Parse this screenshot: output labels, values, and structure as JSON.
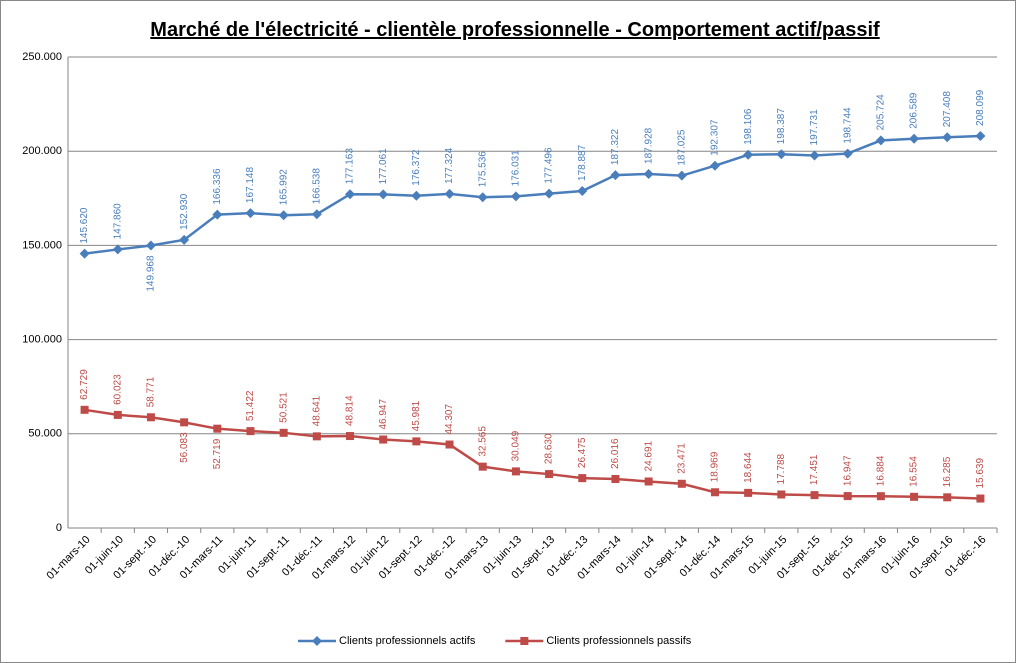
{
  "chart_data": {
    "type": "line",
    "title": "Marché de l'électricité - clientèle professionnelle - Comportement actif/passif",
    "categories": [
      "01-mars-10",
      "01-juin-10",
      "01-sept.-10",
      "01-déc.-10",
      "01-mars-11",
      "01-juin-11",
      "01-sept.-11",
      "01-déc.-11",
      "01-mars-12",
      "01-juin-12",
      "01-sept.-12",
      "01-déc.-12",
      "01-mars-13",
      "01-juin-13",
      "01-sept.-13",
      "01-déc.-13",
      "01-mars-14",
      "01-juin-14",
      "01-sept.-14",
      "01-déc.-14",
      "01-mars-15",
      "01-juin-15",
      "01-sept.-15",
      "01-déc.-15",
      "01-mars-16",
      "01-juin-16",
      "01-sept.-16",
      "01-déc.-16"
    ],
    "series": [
      {
        "name": "Clients professionnels actifs",
        "color": "#4a7ebb",
        "marker": "diamond",
        "values": [
          145620,
          147860,
          149968,
          152930,
          166336,
          167148,
          165992,
          166538,
          177163,
          177061,
          176372,
          177324,
          175536,
          176031,
          177496,
          178887,
          187322,
          187928,
          187025,
          192307,
          198106,
          198387,
          197731,
          198744,
          205724,
          206589,
          207408,
          208099
        ],
        "value_labels": [
          "145.620",
          "147.860",
          "149.968",
          "152.930",
          "166.336",
          "167.148",
          "165.992",
          "166.538",
          "177.163",
          "177.061",
          "176.372",
          "177.324",
          "175.536",
          "176.031",
          "177.496",
          "178.887",
          "187.322",
          "187.928",
          "187.025",
          "192.307",
          "198.106",
          "198.387",
          "197.731",
          "198.744",
          "205.724",
          "206.589",
          "207.408",
          "208.099"
        ]
      },
      {
        "name": "Clients professionnels passifs",
        "color": "#be4b48",
        "marker": "square",
        "values": [
          62729,
          60023,
          58771,
          56083,
          52719,
          51422,
          50521,
          48641,
          48814,
          46947,
          45981,
          44307,
          32565,
          30049,
          28630,
          26475,
          26016,
          24691,
          23471,
          18969,
          18644,
          17788,
          17451,
          16947,
          16884,
          16554,
          16285,
          15639
        ],
        "value_labels": [
          "62.729",
          "60.023",
          "58.771",
          "56.083",
          "52.719",
          "51.422",
          "50.521",
          "48.641",
          "48.814",
          "46.947",
          "45.981",
          "44.307",
          "32.565",
          "30.049",
          "28.630",
          "26.475",
          "26.016",
          "24.691",
          "23.471",
          "18.969",
          "18.644",
          "17.788",
          "17.451",
          "16.947",
          "16.884",
          "16.554",
          "16.285",
          "15.639"
        ]
      }
    ],
    "ylim": [
      0,
      250000
    ],
    "yticks": [
      0,
      {
        "value": 50000,
        "label": "50.000"
      },
      {
        "value": 100000,
        "label": "100.000"
      },
      {
        "value": 150000,
        "label": "150.000"
      },
      {
        "value": 200000,
        "label": "200.000"
      },
      {
        "value": 250000,
        "label": "250.000"
      }
    ],
    "grid": true,
    "legend": "bottom"
  }
}
